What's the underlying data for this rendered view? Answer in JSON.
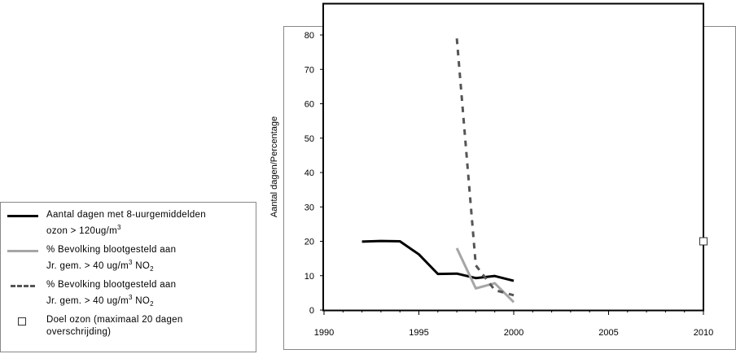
{
  "chart_data": {
    "type": "line",
    "ylabel": "Aantal dagen/Percentage",
    "xlabel": "",
    "xlim": [
      1990,
      2010
    ],
    "ylim": [
      0,
      89
    ],
    "x_ticks": [
      "1990",
      "1995",
      "2000",
      "2005",
      "2010"
    ],
    "y_ticks": [
      "0",
      "10",
      "20",
      "30",
      "40",
      "50",
      "60",
      "70",
      "80"
    ],
    "grid": false,
    "legend_position": "left",
    "series": [
      {
        "name_line1": "Aantal dagen met 8-uurgemiddelden",
        "name_line2": "ozon > 120ug/m",
        "name_sup": "3",
        "name_tail": "",
        "style": "solid",
        "color": "#000000",
        "x": [
          1992,
          1993,
          1994,
          1995,
          1996,
          1997,
          1998,
          1999,
          2000
        ],
        "y": [
          19.9,
          20.1,
          20.0,
          16.2,
          10.5,
          10.6,
          9.3,
          9.9,
          8.5
        ]
      },
      {
        "name_line1": "% Bevolking blootgesteld aan",
        "name_line2": "Jr. gem. > 40 ug/m",
        "name_sup": "3",
        "name_tail": " NO",
        "name_sub": "2",
        "style": "solid",
        "color": "#a6a6a6",
        "x": [
          1997,
          1998,
          1999,
          2000
        ],
        "y": [
          18.0,
          6.3,
          7.8,
          2.3
        ]
      },
      {
        "name_line1": "% Bevolking blootgesteld aan",
        "name_line2": "Jr. gem. > 40 ug/m",
        "name_sup": "3",
        "name_tail": " NO",
        "name_sub": "2",
        "style": "dashed",
        "color": "#555555",
        "x": [
          1997,
          1998,
          1999,
          2000
        ],
        "y": [
          79,
          13,
          5.8,
          4.3
        ]
      }
    ],
    "target": {
      "name_line1": "Doel ozon (maximaal 20 dagen",
      "name_line2": "overschrijding)",
      "x": 2010,
      "y": 20,
      "marker": "square"
    }
  }
}
